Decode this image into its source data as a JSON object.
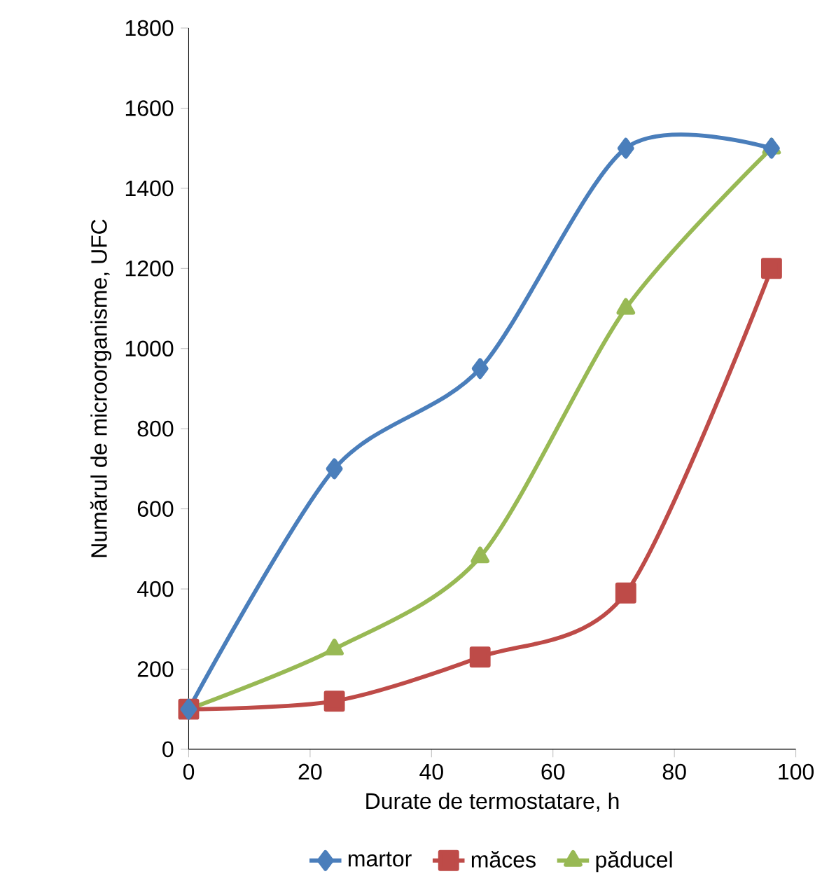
{
  "chart_data": {
    "type": "line",
    "xlabel": "Durate de termostatare, h",
    "ylabel": "Numărul de microorganisme, UFC",
    "x": [
      0,
      24,
      48,
      72,
      96
    ],
    "series": [
      {
        "name": "martor",
        "color": "#4a7ebb",
        "marker": "diamond",
        "values": [
          100,
          700,
          950,
          1500,
          1500
        ]
      },
      {
        "name": "măces",
        "color": "#be4b48",
        "marker": "square",
        "values": [
          100,
          120,
          230,
          390,
          1200
        ]
      },
      {
        "name": "păducel",
        "color": "#98b954",
        "marker": "triangle",
        "values": [
          100,
          250,
          480,
          1100,
          1500
        ]
      }
    ],
    "xlim": [
      0,
      100
    ],
    "xticks": [
      0,
      20,
      40,
      60,
      80,
      100
    ],
    "ylim": [
      0,
      1800
    ],
    "yticks": [
      0,
      200,
      400,
      600,
      800,
      1000,
      1200,
      1400,
      1600,
      1800
    ],
    "grid": false,
    "legend": "bottom",
    "line_style": "solid"
  }
}
